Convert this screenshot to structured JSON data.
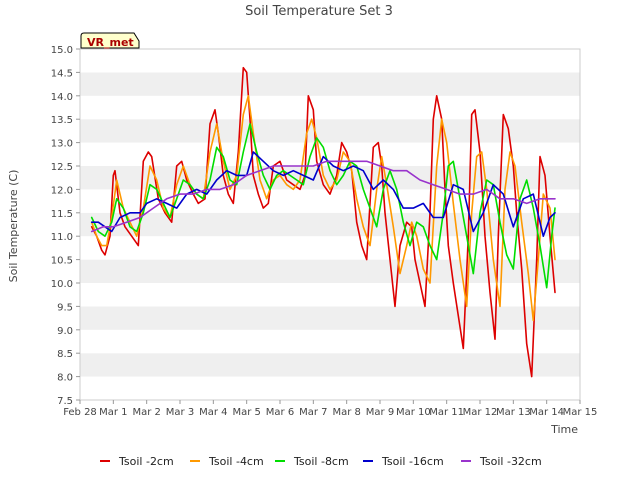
{
  "chart_data": {
    "type": "line",
    "title": "Soil Temperature Set 3",
    "xlabel": "Time",
    "ylabel": "Soil Temperature (C)",
    "site_label": "VR_met",
    "ylim": [
      7.5,
      15.0
    ],
    "xlim": [
      0,
      15
    ],
    "x_ticks": [
      {
        "x": 0,
        "label": "Feb 28"
      },
      {
        "x": 1,
        "label": "Mar 1"
      },
      {
        "x": 2,
        "label": "Mar 2"
      },
      {
        "x": 3,
        "label": "Mar 3"
      },
      {
        "x": 4,
        "label": "Mar 4"
      },
      {
        "x": 5,
        "label": "Mar 5"
      },
      {
        "x": 6,
        "label": "Mar 6"
      },
      {
        "x": 7,
        "label": "Mar 7"
      },
      {
        "x": 8,
        "label": "Mar 8"
      },
      {
        "x": 9,
        "label": "Mar 9"
      },
      {
        "x": 10,
        "label": "Mar 10"
      },
      {
        "x": 11,
        "label": "Mar 11"
      },
      {
        "x": 12,
        "label": "Mar 12"
      },
      {
        "x": 13,
        "label": "Mar 13"
      },
      {
        "x": 14,
        "label": "Mar 14"
      },
      {
        "x": 15,
        "label": "Mar 15"
      }
    ],
    "y_ticks": [
      "7.5",
      "8.0",
      "8.5",
      "9.0",
      "9.5",
      "10.0",
      "10.5",
      "11.0",
      "11.5",
      "12.0",
      "12.5",
      "13.0",
      "13.5",
      "14.0",
      "14.5",
      "15.0"
    ],
    "grid": "horizontal bands",
    "legend_position": "bottom",
    "series": [
      {
        "name": "Tsoil -2cm",
        "color": "#dd0000",
        "x": [
          0.35,
          0.5,
          0.65,
          0.75,
          0.9,
          1.0,
          1.05,
          1.2,
          1.35,
          1.55,
          1.75,
          1.9,
          2.05,
          2.15,
          2.35,
          2.55,
          2.75,
          2.9,
          3.05,
          3.2,
          3.4,
          3.55,
          3.75,
          3.9,
          4.05,
          4.15,
          4.3,
          4.45,
          4.6,
          4.75,
          4.9,
          5.0,
          5.1,
          5.2,
          5.35,
          5.5,
          5.65,
          5.8,
          6.0,
          6.2,
          6.4,
          6.6,
          6.75,
          6.85,
          7.0,
          7.1,
          7.3,
          7.5,
          7.7,
          7.85,
          8.0,
          8.15,
          8.3,
          8.45,
          8.6,
          8.8,
          8.95,
          9.05,
          9.15,
          9.3,
          9.45,
          9.6,
          9.8,
          9.95,
          10.05,
          10.2,
          10.35,
          10.5,
          10.6,
          10.7,
          10.85,
          10.95,
          11.05,
          11.2,
          11.35,
          11.5,
          11.65,
          11.75,
          11.85,
          12.0,
          12.15,
          12.3,
          12.45,
          12.55,
          12.7,
          12.85,
          13.0,
          13.1,
          13.25,
          13.4,
          13.55,
          13.7,
          13.8,
          13.95,
          14.1,
          14.25
        ],
        "values": [
          11.2,
          11.0,
          10.7,
          10.6,
          11.0,
          12.3,
          12.4,
          11.5,
          11.2,
          11.0,
          10.8,
          12.6,
          12.8,
          12.7,
          11.8,
          11.5,
          11.3,
          12.5,
          12.6,
          12.2,
          11.9,
          11.7,
          11.8,
          13.4,
          13.7,
          13.2,
          12.3,
          11.9,
          11.7,
          12.8,
          14.6,
          14.5,
          13.5,
          12.3,
          11.9,
          11.6,
          11.7,
          12.5,
          12.6,
          12.2,
          12.1,
          12.0,
          12.3,
          14.0,
          13.7,
          12.6,
          12.1,
          11.9,
          12.3,
          13.0,
          12.8,
          12.4,
          11.3,
          10.8,
          10.5,
          12.9,
          13.0,
          12.5,
          11.5,
          10.5,
          9.5,
          10.8,
          11.3,
          11.2,
          10.5,
          10.0,
          9.5,
          11.5,
          13.5,
          14.0,
          13.5,
          12.0,
          10.8,
          10.0,
          9.3,
          8.6,
          11.0,
          13.6,
          13.7,
          12.8,
          11.0,
          9.8,
          8.8,
          11.0,
          13.6,
          13.3,
          12.5,
          11.5,
          10.3,
          8.7,
          8.0,
          10.5,
          12.7,
          12.3,
          11.0,
          9.8
        ]
      },
      {
        "name": "Tsoil -4cm",
        "color": "#ff9900",
        "x": [
          0.35,
          0.5,
          0.65,
          0.8,
          0.95,
          1.1,
          1.3,
          1.5,
          1.7,
          1.9,
          2.1,
          2.3,
          2.5,
          2.7,
          2.9,
          3.1,
          3.3,
          3.5,
          3.7,
          3.9,
          4.1,
          4.3,
          4.5,
          4.7,
          4.9,
          5.05,
          5.2,
          5.4,
          5.6,
          5.8,
          6.0,
          6.2,
          6.4,
          6.6,
          6.8,
          6.95,
          7.1,
          7.3,
          7.5,
          7.7,
          7.9,
          8.1,
          8.3,
          8.5,
          8.7,
          8.9,
          9.05,
          9.2,
          9.4,
          9.6,
          9.8,
          9.95,
          10.1,
          10.3,
          10.5,
          10.7,
          10.85,
          11.0,
          11.2,
          11.4,
          11.6,
          11.75,
          11.9,
          12.05,
          12.2,
          12.4,
          12.6,
          12.75,
          12.9,
          13.05,
          13.25,
          13.45,
          13.6,
          13.75,
          13.9,
          14.1,
          14.25
        ],
        "values": [
          11.3,
          11.0,
          10.8,
          10.8,
          11.4,
          12.2,
          11.6,
          11.3,
          11.0,
          11.6,
          12.5,
          12.2,
          11.6,
          11.4,
          12.1,
          12.5,
          12.1,
          11.9,
          11.8,
          12.8,
          13.4,
          12.6,
          12.0,
          12.3,
          13.6,
          14.0,
          13.2,
          12.2,
          11.8,
          12.2,
          12.3,
          12.1,
          12.0,
          12.2,
          13.2,
          13.5,
          13.1,
          12.3,
          12.0,
          12.2,
          12.8,
          12.6,
          11.8,
          11.2,
          10.8,
          12.0,
          12.7,
          12.1,
          11.2,
          10.2,
          10.8,
          11.3,
          11.0,
          10.3,
          10.0,
          12.5,
          13.5,
          13.0,
          11.7,
          10.5,
          9.5,
          11.5,
          12.7,
          12.8,
          12.0,
          10.5,
          9.5,
          12.0,
          12.8,
          12.5,
          11.3,
          10.2,
          9.2,
          10.5,
          11.9,
          11.6,
          10.5
        ]
      },
      {
        "name": "Tsoil -8cm",
        "color": "#00dd00",
        "x": [
          0.35,
          0.55,
          0.75,
          0.95,
          1.1,
          1.3,
          1.5,
          1.7,
          1.9,
          2.1,
          2.3,
          2.5,
          2.7,
          2.9,
          3.1,
          3.3,
          3.5,
          3.7,
          3.9,
          4.1,
          4.3,
          4.5,
          4.7,
          4.9,
          5.1,
          5.3,
          5.5,
          5.7,
          5.9,
          6.1,
          6.3,
          6.5,
          6.7,
          6.9,
          7.1,
          7.3,
          7.5,
          7.7,
          7.9,
          8.1,
          8.3,
          8.5,
          8.7,
          8.9,
          9.1,
          9.3,
          9.5,
          9.7,
          9.9,
          10.1,
          10.3,
          10.5,
          10.7,
          10.9,
          11.05,
          11.2,
          11.4,
          11.6,
          11.8,
          12.0,
          12.2,
          12.4,
          12.6,
          12.8,
          13.0,
          13.2,
          13.4,
          13.6,
          13.8,
          14.0,
          14.15,
          14.25
        ],
        "values": [
          11.4,
          11.1,
          11.0,
          11.3,
          11.8,
          11.6,
          11.2,
          11.1,
          11.5,
          12.1,
          12.0,
          11.7,
          11.4,
          11.8,
          12.2,
          12.1,
          11.9,
          11.8,
          12.2,
          12.9,
          12.7,
          12.2,
          12.1,
          12.8,
          13.4,
          12.8,
          12.3,
          12.0,
          12.3,
          12.4,
          12.3,
          12.2,
          12.1,
          12.7,
          13.1,
          12.9,
          12.4,
          12.1,
          12.3,
          12.6,
          12.5,
          12.0,
          11.6,
          11.2,
          12.0,
          12.4,
          12.0,
          11.3,
          10.8,
          11.3,
          11.2,
          10.8,
          10.5,
          11.5,
          12.5,
          12.6,
          11.8,
          11.0,
          10.2,
          11.5,
          12.2,
          12.1,
          11.3,
          10.6,
          10.3,
          11.8,
          12.2,
          11.6,
          10.8,
          9.9,
          11.0,
          11.6
        ]
      },
      {
        "name": "Tsoil -16cm",
        "color": "#0000cc",
        "x": [
          0.35,
          0.55,
          0.75,
          0.95,
          1.2,
          1.5,
          1.8,
          2.0,
          2.3,
          2.6,
          2.9,
          3.2,
          3.5,
          3.8,
          4.1,
          4.4,
          4.7,
          5.0,
          5.2,
          5.5,
          5.8,
          6.1,
          6.4,
          6.7,
          7.0,
          7.3,
          7.6,
          7.9,
          8.2,
          8.5,
          8.8,
          9.1,
          9.4,
          9.7,
          10.0,
          10.3,
          10.6,
          10.9,
          11.2,
          11.5,
          11.8,
          12.1,
          12.4,
          12.7,
          13.0,
          13.3,
          13.6,
          13.9,
          14.1,
          14.25
        ],
        "values": [
          11.3,
          11.3,
          11.2,
          11.1,
          11.4,
          11.5,
          11.5,
          11.7,
          11.8,
          11.7,
          11.6,
          11.9,
          12.0,
          11.9,
          12.2,
          12.4,
          12.3,
          12.3,
          12.8,
          12.6,
          12.4,
          12.3,
          12.4,
          12.3,
          12.2,
          12.7,
          12.5,
          12.4,
          12.5,
          12.4,
          12.0,
          12.2,
          12.0,
          11.6,
          11.6,
          11.7,
          11.4,
          11.4,
          12.1,
          12.0,
          11.1,
          11.5,
          12.1,
          11.9,
          11.2,
          11.8,
          11.9,
          11.0,
          11.4,
          11.5
        ]
      },
      {
        "name": "Tsoil -32cm",
        "color": "#9933cc",
        "x": [
          0.35,
          0.7,
          1.0,
          1.4,
          1.8,
          2.2,
          2.6,
          3.0,
          3.4,
          3.8,
          4.2,
          4.6,
          5.0,
          5.4,
          5.8,
          6.2,
          6.6,
          7.0,
          7.4,
          7.8,
          8.2,
          8.6,
          9.0,
          9.4,
          9.8,
          10.2,
          10.6,
          11.0,
          11.4,
          11.8,
          12.2,
          12.6,
          13.0,
          13.4,
          13.8,
          14.1,
          14.25
        ],
        "values": [
          11.1,
          11.2,
          11.2,
          11.3,
          11.4,
          11.6,
          11.8,
          11.9,
          11.9,
          12.0,
          12.0,
          12.1,
          12.3,
          12.4,
          12.5,
          12.5,
          12.5,
          12.5,
          12.6,
          12.6,
          12.6,
          12.6,
          12.5,
          12.4,
          12.4,
          12.2,
          12.1,
          12.0,
          11.9,
          11.9,
          12.0,
          11.8,
          11.8,
          11.7,
          11.8,
          11.8,
          11.8
        ]
      }
    ]
  }
}
